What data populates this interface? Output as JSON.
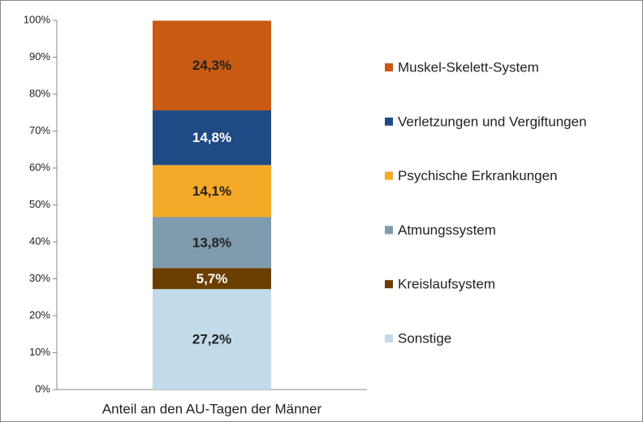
{
  "chart_data": {
    "type": "stacked_bar",
    "categories": [
      "Anteil an den AU-Tagen der Männer"
    ],
    "series": [
      {
        "name": "Sonstige",
        "color": "#c2dbe9",
        "values": [
          27.2
        ],
        "value_labels": [
          "27,2%"
        ]
      },
      {
        "name": "Kreislaufsystem",
        "color": "#6b3e00",
        "values": [
          5.7
        ],
        "value_labels": [
          "5,7%"
        ]
      },
      {
        "name": "Atmungssystem",
        "color": "#7f9cae",
        "values": [
          13.8
        ],
        "value_labels": [
          "13,8%"
        ]
      },
      {
        "name": "Psychische Erkrankungen",
        "color": "#f5a928",
        "values": [
          14.1
        ],
        "value_labels": [
          "14,1%"
        ]
      },
      {
        "name": "Verletzungen und Vergiftungen",
        "color": "#1f4a86",
        "values": [
          14.8
        ],
        "value_labels": [
          "14,8%"
        ]
      },
      {
        "name": "Muskel-Skelett-System",
        "color": "#c85a13",
        "values": [
          24.3
        ],
        "value_labels": [
          "24,3%"
        ]
      }
    ],
    "ylim": [
      0,
      100
    ],
    "yticks": [
      {
        "value": 0,
        "label": "0%"
      },
      {
        "value": 10,
        "label": "10%"
      },
      {
        "value": 20,
        "label": "20%"
      },
      {
        "value": 30,
        "label": "30%"
      },
      {
        "value": 40,
        "label": "40%"
      },
      {
        "value": 50,
        "label": "50%"
      },
      {
        "value": 60,
        "label": "60%"
      },
      {
        "value": 70,
        "label": "70%"
      },
      {
        "value": 80,
        "label": "80%"
      },
      {
        "value": 90,
        "label": "90%"
      },
      {
        "value": 100,
        "label": "100%"
      }
    ],
    "grid": false,
    "legend": "right"
  }
}
